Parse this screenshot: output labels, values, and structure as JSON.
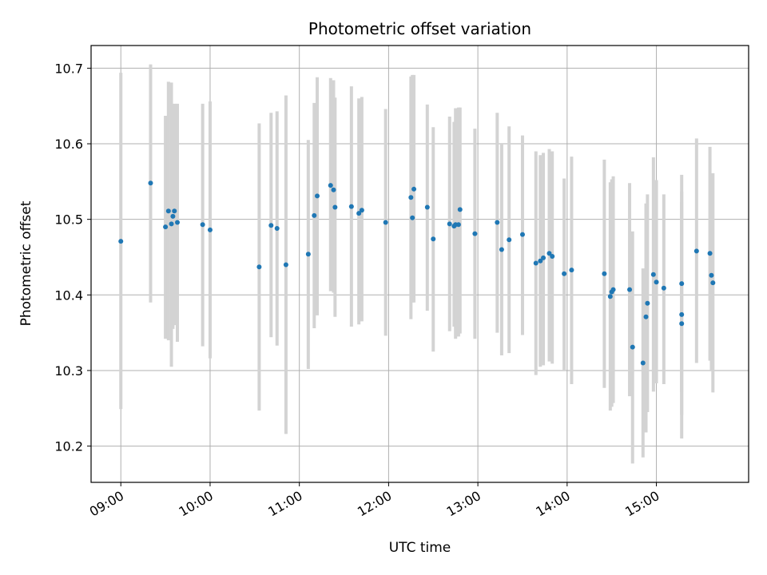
{
  "chart_data": {
    "type": "scatter",
    "title": "Photometric offset variation",
    "xlabel": "UTC time",
    "ylabel": "Photometric offset",
    "xlim": [
      "08:40",
      "16:02"
    ],
    "ylim": [
      10.152,
      10.73
    ],
    "x_ticks": [
      "09:00",
      "10:00",
      "11:00",
      "12:00",
      "13:00",
      "14:00",
      "15:00"
    ],
    "y_ticks": [
      "10.2",
      "10.3",
      "10.4",
      "10.5",
      "10.6",
      "10.7"
    ],
    "grid": true,
    "colors": {
      "point": "#1f77b4",
      "errorbar": "#d3d3d3",
      "grid": "#b0b0b0",
      "axis": "#000000"
    },
    "points": [
      {
        "x": "09:00",
        "y": 10.471,
        "ylo": 10.249,
        "yhi": 10.694
      },
      {
        "x": "09:20",
        "y": 10.548,
        "ylo": 10.39,
        "yhi": 10.705
      },
      {
        "x": "09:30",
        "y": 10.49,
        "ylo": 10.342,
        "yhi": 10.637
      },
      {
        "x": "09:32",
        "y": 10.511,
        "ylo": 10.34,
        "yhi": 10.682
      },
      {
        "x": "09:34",
        "y": 10.494,
        "ylo": 10.305,
        "yhi": 10.681
      },
      {
        "x": "09:35",
        "y": 10.504,
        "ylo": 10.355,
        "yhi": 10.652
      },
      {
        "x": "09:36",
        "y": 10.511,
        "ylo": 10.36,
        "yhi": 10.653
      },
      {
        "x": "09:38",
        "y": 10.496,
        "ylo": 10.338,
        "yhi": 10.653
      },
      {
        "x": "09:55",
        "y": 10.493,
        "ylo": 10.332,
        "yhi": 10.653
      },
      {
        "x": "10:00",
        "y": 10.486,
        "ylo": 10.316,
        "yhi": 10.656
      },
      {
        "x": "10:33",
        "y": 10.437,
        "ylo": 10.247,
        "yhi": 10.627
      },
      {
        "x": "10:41",
        "y": 10.492,
        "ylo": 10.344,
        "yhi": 10.641
      },
      {
        "x": "10:45",
        "y": 10.488,
        "ylo": 10.333,
        "yhi": 10.643
      },
      {
        "x": "10:51",
        "y": 10.44,
        "ylo": 10.216,
        "yhi": 10.664
      },
      {
        "x": "11:06",
        "y": 10.454,
        "ylo": 10.302,
        "yhi": 10.605
      },
      {
        "x": "11:10",
        "y": 10.505,
        "ylo": 10.356,
        "yhi": 10.654
      },
      {
        "x": "11:12",
        "y": 10.531,
        "ylo": 10.373,
        "yhi": 10.688
      },
      {
        "x": "11:21",
        "y": 10.545,
        "ylo": 10.405,
        "yhi": 10.687
      },
      {
        "x": "11:23",
        "y": 10.539,
        "ylo": 10.403,
        "yhi": 10.684
      },
      {
        "x": "11:24",
        "y": 10.516,
        "ylo": 10.371,
        "yhi": 10.661
      },
      {
        "x": "11:35",
        "y": 10.517,
        "ylo": 10.358,
        "yhi": 10.676
      },
      {
        "x": "11:40",
        "y": 10.508,
        "ylo": 10.361,
        "yhi": 10.66
      },
      {
        "x": "11:42",
        "y": 10.512,
        "ylo": 10.365,
        "yhi": 10.662
      },
      {
        "x": "11:58",
        "y": 10.496,
        "ylo": 10.346,
        "yhi": 10.646
      },
      {
        "x": "12:15",
        "y": 10.529,
        "ylo": 10.368,
        "yhi": 10.689
      },
      {
        "x": "12:16",
        "y": 10.502,
        "ylo": 10.39,
        "yhi": 10.691
      },
      {
        "x": "12:17",
        "y": 10.54,
        "ylo": 10.39,
        "yhi": 10.691
      },
      {
        "x": "12:26",
        "y": 10.516,
        "ylo": 10.379,
        "yhi": 10.652
      },
      {
        "x": "12:30",
        "y": 10.474,
        "ylo": 10.325,
        "yhi": 10.622
      },
      {
        "x": "12:41",
        "y": 10.494,
        "ylo": 10.352,
        "yhi": 10.636
      },
      {
        "x": "12:44",
        "y": 10.491,
        "ylo": 10.358,
        "yhi": 10.629
      },
      {
        "x": "12:45",
        "y": 10.493,
        "ylo": 10.342,
        "yhi": 10.647
      },
      {
        "x": "12:47",
        "y": 10.493,
        "ylo": 10.345,
        "yhi": 10.648
      },
      {
        "x": "12:48",
        "y": 10.513,
        "ylo": 10.349,
        "yhi": 10.648
      },
      {
        "x": "12:58",
        "y": 10.481,
        "ylo": 10.342,
        "yhi": 10.62
      },
      {
        "x": "13:13",
        "y": 10.496,
        "ylo": 10.35,
        "yhi": 10.641
      },
      {
        "x": "13:16",
        "y": 10.46,
        "ylo": 10.32,
        "yhi": 10.601
      },
      {
        "x": "13:21",
        "y": 10.473,
        "ylo": 10.323,
        "yhi": 10.623
      },
      {
        "x": "13:30",
        "y": 10.48,
        "ylo": 10.347,
        "yhi": 10.611
      },
      {
        "x": "13:39",
        "y": 10.442,
        "ylo": 10.294,
        "yhi": 10.59
      },
      {
        "x": "13:42",
        "y": 10.445,
        "ylo": 10.305,
        "yhi": 10.585
      },
      {
        "x": "13:44",
        "y": 10.449,
        "ylo": 10.307,
        "yhi": 10.588
      },
      {
        "x": "13:48",
        "y": 10.455,
        "ylo": 10.312,
        "yhi": 10.593
      },
      {
        "x": "13:50",
        "y": 10.451,
        "ylo": 10.309,
        "yhi": 10.59
      },
      {
        "x": "13:58",
        "y": 10.428,
        "ylo": 10.3,
        "yhi": 10.554
      },
      {
        "x": "14:03",
        "y": 10.433,
        "ylo": 10.282,
        "yhi": 10.583
      },
      {
        "x": "14:25",
        "y": 10.428,
        "ylo": 10.277,
        "yhi": 10.579
      },
      {
        "x": "14:29",
        "y": 10.398,
        "ylo": 10.247,
        "yhi": 10.549
      },
      {
        "x": "14:30",
        "y": 10.404,
        "ylo": 10.252,
        "yhi": 10.553
      },
      {
        "x": "14:31",
        "y": 10.407,
        "ylo": 10.257,
        "yhi": 10.557
      },
      {
        "x": "14:42",
        "y": 10.407,
        "ylo": 10.266,
        "yhi": 10.548
      },
      {
        "x": "14:44",
        "y": 10.331,
        "ylo": 10.177,
        "yhi": 10.484
      },
      {
        "x": "14:51",
        "y": 10.31,
        "ylo": 10.185,
        "yhi": 10.435
      },
      {
        "x": "14:53",
        "y": 10.371,
        "ylo": 10.218,
        "yhi": 10.521
      },
      {
        "x": "14:54",
        "y": 10.389,
        "ylo": 10.245,
        "yhi": 10.533
      },
      {
        "x": "14:58",
        "y": 10.427,
        "ylo": 10.272,
        "yhi": 10.582
      },
      {
        "x": "15:00",
        "y": 10.417,
        "ylo": 10.283,
        "yhi": 10.552
      },
      {
        "x": "15:05",
        "y": 10.409,
        "ylo": 10.282,
        "yhi": 10.533
      },
      {
        "x": "15:17",
        "y": 10.415,
        "ylo": 10.271,
        "yhi": 10.559
      },
      {
        "x": "15:17",
        "y": 10.374,
        "ylo": 10.21,
        "yhi": 10.537
      },
      {
        "x": "15:17",
        "y": 10.362,
        "ylo": 10.241,
        "yhi": 10.523
      },
      {
        "x": "15:27",
        "y": 10.458,
        "ylo": 10.31,
        "yhi": 10.607
      },
      {
        "x": "15:36",
        "y": 10.455,
        "ylo": 10.313,
        "yhi": 10.596
      },
      {
        "x": "15:37",
        "y": 10.426,
        "ylo": 10.3,
        "yhi": 10.55
      },
      {
        "x": "15:38",
        "y": 10.416,
        "ylo": 10.271,
        "yhi": 10.561
      }
    ]
  }
}
